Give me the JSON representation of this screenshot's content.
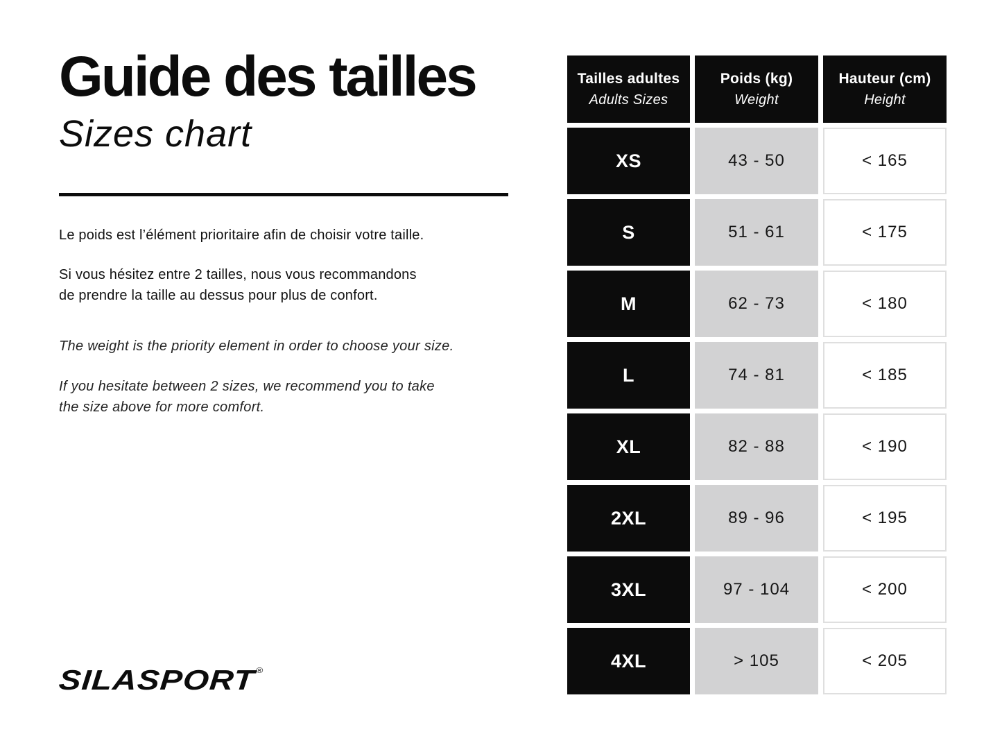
{
  "colors": {
    "black": "#0c0c0c",
    "gray_cell": "#d2d2d3",
    "cell_border": "#dfdfdf",
    "text_dark": "#161616",
    "page_bg": "#ffffff"
  },
  "intro": {
    "title_fr": "Guide des tailles",
    "title_en": "Sizes chart",
    "fr_line_1": "Le poids est l’élément prioritaire afin de choisir votre taille.",
    "fr_line_2": "Si vous hésitez entre 2 tailles, nous vous recommandons",
    "fr_line_3": "de prendre la taille au dessus pour plus de confort.",
    "en_line_1": "The weight is the priority element in order to choose your size.",
    "en_line_2": "If you hesitate between 2 sizes, we recommend you to take",
    "en_line_3": "the size above for more comfort."
  },
  "brand": {
    "name": "SILASPORT",
    "trademark": "®"
  },
  "table": {
    "headers": [
      {
        "fr": "Tailles adultes",
        "en": "Adults Sizes"
      },
      {
        "fr": "Poids (kg)",
        "en": "Weight"
      },
      {
        "fr": "Hauteur (cm)",
        "en": "Height"
      }
    ],
    "rows": [
      {
        "size": "XS",
        "weight": "43 - 50",
        "height": "< 165"
      },
      {
        "size": "S",
        "weight": "51 - 61",
        "height": "< 175"
      },
      {
        "size": "M",
        "weight": "62 - 73",
        "height": "< 180"
      },
      {
        "size": "L",
        "weight": "74 - 81",
        "height": "< 185"
      },
      {
        "size": "XL",
        "weight": "82 - 88",
        "height": "< 190"
      },
      {
        "size": "2XL",
        "weight": "89 - 96",
        "height": "< 195"
      },
      {
        "size": "3XL",
        "weight": "97 - 104",
        "height": "< 200"
      },
      {
        "size": "4XL",
        "weight": "> 105",
        "height": "< 205"
      }
    ]
  }
}
